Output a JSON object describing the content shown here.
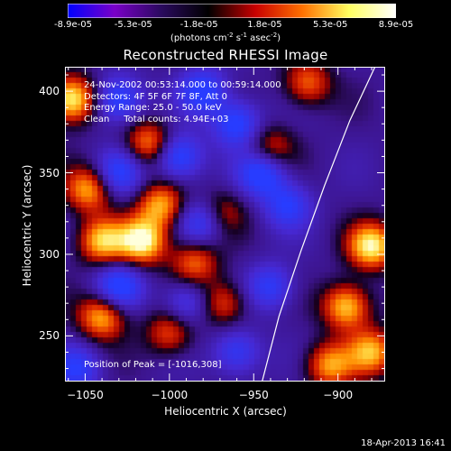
{
  "colorbar": {
    "ticks": [
      "-8.9e-05",
      "-5.3e-05",
      "-1.8e-05",
      "1.8e-05",
      "5.3e-05",
      "8.9e-05"
    ],
    "units_pre": "(photons cm",
    "units_exp1": "-2",
    "units_mid": " s",
    "units_exp2": "-1",
    "units_mid2": " asec",
    "units_exp3": "-2",
    "units_post": ")"
  },
  "colors": {
    "colorbar_stops": [
      "#0000ff",
      "#7a00c8",
      "#2a0a5e",
      "#000000",
      "#c80000",
      "#ff7000",
      "#ffff60",
      "#ffffff"
    ]
  },
  "annotations": {
    "time_range": "24-Nov-2002 00:53:14.000 to 00:59:14.000",
    "detectors": "Detectors: 4F 5F 6F 7F 8F, Att 0",
    "energy": "Energy Range: 25.0 - 50.0 keV",
    "clean": "Clean     Total counts: 4.94E+03",
    "peak": "Position of Peak = [-1016,308]"
  },
  "footer": "18-Apr-2013 16:41",
  "chart_data": {
    "type": "heatmap",
    "title": "Reconstructed RHESSI Image",
    "xlabel": "Heliocentric X (arcsec)",
    "ylabel": "Heliocentric Y (arcsec)",
    "xlim": [
      -1062,
      -872
    ],
    "ylim": [
      222,
      415
    ],
    "xticks": [
      -1050,
      -1000,
      -950,
      -900
    ],
    "yticks": [
      250,
      300,
      350,
      400
    ],
    "xtick_labels": [
      "−1050",
      "−1000",
      "−950",
      "−900"
    ],
    "ytick_labels": [
      "250",
      "300",
      "350",
      "400"
    ],
    "color_range": [
      -8.9e-05,
      8.9e-05
    ],
    "peak_position": [
      -1016,
      308
    ],
    "limb_curve": [
      [
        -945,
        222
      ],
      [
        -935,
        262
      ],
      [
        -922,
        302
      ],
      [
        -908,
        342
      ],
      [
        -893,
        382
      ],
      [
        -878,
        415
      ]
    ],
    "hot_spots": [
      {
        "x": -1058,
        "y": 395,
        "v": 1.0
      },
      {
        "x": -1048,
        "y": 340,
        "v": 0.75
      },
      {
        "x": -1040,
        "y": 308,
        "v": 0.8
      },
      {
        "x": -1016,
        "y": 308,
        "v": 1.0
      },
      {
        "x": -1005,
        "y": 330,
        "v": 0.75
      },
      {
        "x": -1012,
        "y": 368,
        "v": 0.7
      },
      {
        "x": -1040,
        "y": 262,
        "v": 0.8
      },
      {
        "x": -1000,
        "y": 252,
        "v": 0.55
      },
      {
        "x": -985,
        "y": 295,
        "v": 0.6
      },
      {
        "x": -970,
        "y": 325,
        "v": 0.5
      },
      {
        "x": -968,
        "y": 270,
        "v": 0.55
      },
      {
        "x": -918,
        "y": 405,
        "v": 0.6
      },
      {
        "x": -940,
        "y": 365,
        "v": 0.5
      },
      {
        "x": -880,
        "y": 305,
        "v": 0.95
      },
      {
        "x": -895,
        "y": 268,
        "v": 0.85
      },
      {
        "x": -880,
        "y": 240,
        "v": 0.75
      },
      {
        "x": -905,
        "y": 232,
        "v": 0.7
      }
    ],
    "cold_spots": [
      {
        "x": -1030,
        "y": 395,
        "v": -0.7
      },
      {
        "x": -995,
        "y": 360,
        "v": -0.75
      },
      {
        "x": -980,
        "y": 400,
        "v": -0.65
      },
      {
        "x": -960,
        "y": 380,
        "v": -0.7
      },
      {
        "x": -945,
        "y": 350,
        "v": -0.75
      },
      {
        "x": -1030,
        "y": 350,
        "v": -0.6
      },
      {
        "x": -980,
        "y": 320,
        "v": -0.65
      },
      {
        "x": -930,
        "y": 330,
        "v": -0.55
      },
      {
        "x": -1030,
        "y": 280,
        "v": -0.7
      },
      {
        "x": -990,
        "y": 270,
        "v": -0.5
      },
      {
        "x": -940,
        "y": 280,
        "v": -0.55
      },
      {
        "x": -1055,
        "y": 230,
        "v": -0.55
      },
      {
        "x": -960,
        "y": 240,
        "v": -0.55
      }
    ]
  }
}
